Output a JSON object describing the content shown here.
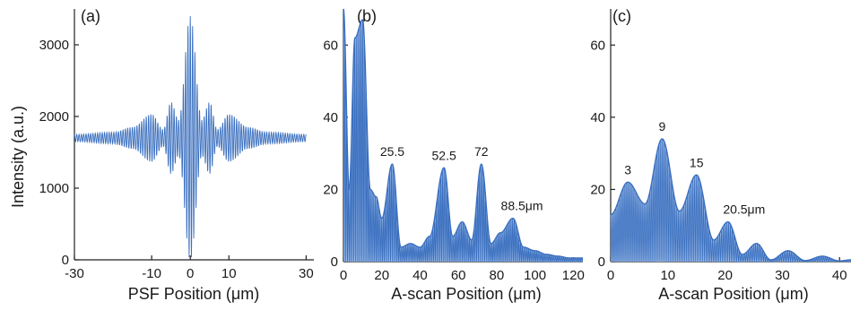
{
  "colors": {
    "signal": "#3a6fbf",
    "signal_light": "#a9c4ea",
    "axis": "#222222"
  },
  "chart_data": [
    {
      "type": "line",
      "panel_label": "(a)",
      "xlabel": "PSF  Position (μm)",
      "ylabel": "Intensity (a.u.)",
      "xlim": [
        -30,
        32
      ],
      "ylim": [
        0,
        3500
      ],
      "xticks": [
        -30,
        -10,
        0,
        10,
        30
      ],
      "yticks": [
        0,
        1000,
        2000,
        3000
      ],
      "baseline": 1700,
      "series": [
        {
          "values_description_free": true,
          "envelope": {
            "x": [
              -30,
              -20,
              -15,
              -10,
              -7,
              -5,
              -3,
              0,
              3,
              5,
              7,
              10,
              15,
              20,
              30
            ],
            "amplitude": [
              50,
              80,
              150,
              330,
              120,
              500,
              250,
              1700,
              250,
              500,
              120,
              330,
              150,
              80,
              50
            ]
          }
        }
      ]
    },
    {
      "type": "area",
      "panel_label": "(b)",
      "xlabel": "A-scan  Position (μm)",
      "xlim": [
        0,
        125
      ],
      "ylim": [
        0,
        70
      ],
      "xticks": [
        0,
        20,
        40,
        60,
        80,
        100,
        120
      ],
      "yticks": [
        0,
        20,
        40,
        60
      ],
      "peaks": {
        "x": [
          0,
          3,
          6,
          10,
          14,
          17,
          20,
          25.5,
          30,
          35,
          40,
          45,
          52.5,
          57,
          62,
          67,
          72,
          77,
          82,
          88.5,
          94,
          100,
          106,
          112,
          118,
          124
        ],
        "y": [
          70,
          20,
          62,
          67,
          20,
          18,
          12,
          27,
          4,
          5,
          4,
          7,
          26,
          7,
          11,
          6,
          27,
          5,
          8,
          12,
          4,
          3,
          2,
          1.5,
          1,
          1
        ]
      },
      "annotations": [
        "25.5",
        "52.5",
        "72",
        "88.5μm"
      ]
    },
    {
      "type": "area",
      "panel_label": "(c)",
      "xlabel": "A-scan  Position (μm)",
      "xlim": [
        0,
        42
      ],
      "ylim": [
        0,
        70
      ],
      "xticks": [
        0,
        10,
        20,
        30,
        40
      ],
      "yticks": [
        0,
        20,
        40,
        60
      ],
      "peaks": {
        "x": [
          0,
          3,
          6,
          9,
          12,
          15,
          18,
          20.5,
          23,
          25.5,
          28,
          31,
          34,
          37,
          40,
          42
        ],
        "y": [
          13,
          22,
          16,
          34,
          14,
          24,
          6,
          11,
          2,
          5,
          0.5,
          3,
          0.3,
          1.5,
          0.2,
          0.5
        ]
      },
      "annotations": [
        "3",
        "9",
        "15",
        "20.5μm"
      ]
    }
  ]
}
